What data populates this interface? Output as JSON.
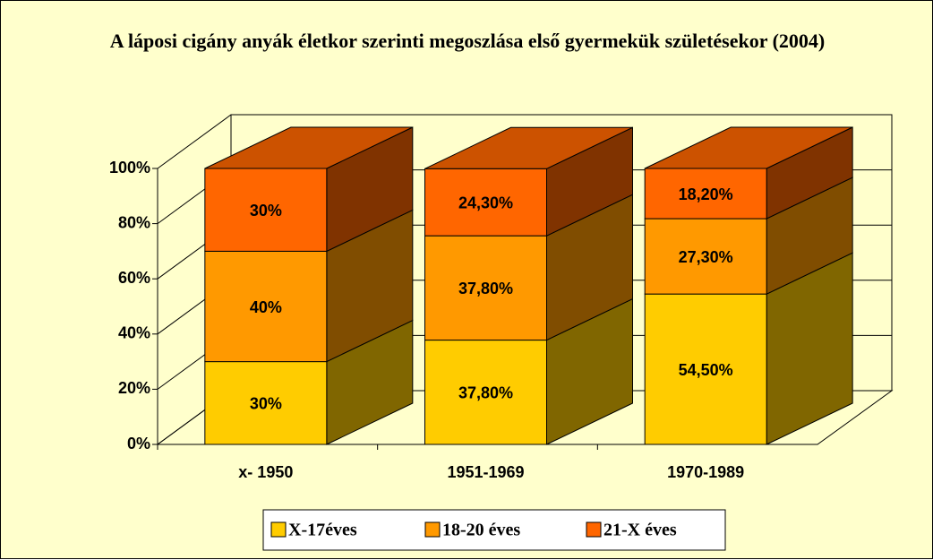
{
  "chart_data": {
    "type": "bar3d_stacked",
    "title": "A láposi cigány anyák életkor szerinti megoszlása első gyermekük születésekor (2004)",
    "categories": [
      "x- 1950",
      "1951-1969",
      "1970-1989"
    ],
    "series": [
      {
        "name": "X-17éves",
        "color": "#ffcc00",
        "values": [
          30,
          37.8,
          54.5
        ],
        "value_labels": [
          "30%",
          "37,80%",
          "54,50%"
        ]
      },
      {
        "name": "18-20 éves",
        "color": "#ff9900",
        "values": [
          40,
          37.8,
          27.3
        ],
        "value_labels": [
          "40%",
          "37,80%",
          "27,30%"
        ]
      },
      {
        "name": "21-X éves",
        "color": "#ff6600",
        "values": [
          30,
          24.3,
          18.2
        ],
        "value_labels": [
          "30%",
          "24,30%",
          "18,20%"
        ]
      }
    ],
    "ylim": [
      0,
      100
    ],
    "yticks": [
      {
        "value": 0,
        "label": "0%"
      },
      {
        "value": 20,
        "label": "20%"
      },
      {
        "value": 40,
        "label": "40%"
      },
      {
        "value": 60,
        "label": "60%"
      },
      {
        "value": 80,
        "label": "80%"
      },
      {
        "value": 100,
        "label": "100%"
      }
    ],
    "grid": true,
    "legend": "bottom"
  }
}
